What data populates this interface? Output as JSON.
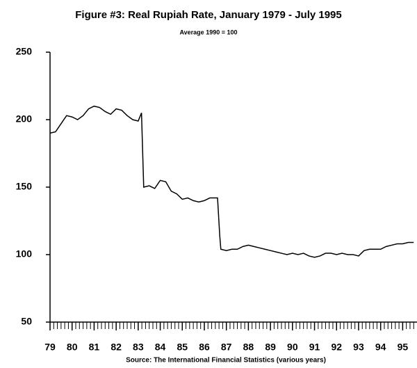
{
  "chart_data": {
    "type": "line",
    "title": "Figure #3: Real Rupiah Rate, January 1979 - July 1995",
    "subtitle": "Average 1990 = 100",
    "source": "Source: The International Financial Statistics (various years)",
    "x": [
      1979,
      1979.25,
      1979.5,
      1979.75,
      1980,
      1980.25,
      1980.5,
      1980.75,
      1981,
      1981.25,
      1981.5,
      1981.75,
      1982,
      1982.25,
      1982.5,
      1982.75,
      1983,
      1983.15,
      1983.25,
      1983.5,
      1983.75,
      1984,
      1984.25,
      1984.5,
      1984.75,
      1985,
      1985.25,
      1985.5,
      1985.75,
      1986,
      1986.25,
      1986.6,
      1986.7,
      1986.75,
      1987,
      1987.25,
      1987.5,
      1987.75,
      1988,
      1988.25,
      1988.5,
      1988.75,
      1989,
      1989.25,
      1989.5,
      1989.75,
      1990,
      1990.25,
      1990.5,
      1990.75,
      1991,
      1991.25,
      1991.5,
      1991.75,
      1992,
      1992.25,
      1992.5,
      1992.75,
      1993,
      1993.25,
      1993.5,
      1993.75,
      1994,
      1994.25,
      1994.5,
      1994.75,
      1995,
      1995.25,
      1995.5
    ],
    "series": [
      {
        "name": "Real Rupiah Rate",
        "color": "#000000",
        "values": [
          190,
          191,
          197,
          203,
          202,
          200,
          203,
          208,
          210,
          209,
          206,
          204,
          208,
          207,
          203,
          200,
          199,
          205,
          150,
          151,
          149,
          155,
          154,
          147,
          145,
          141,
          142,
          140,
          139,
          140,
          142,
          142,
          114,
          104,
          103,
          104,
          104,
          106,
          107,
          106,
          105,
          104,
          103,
          102,
          101,
          100,
          101,
          100,
          101,
          99,
          98,
          99,
          101,
          101,
          100,
          101,
          100,
          100,
          99,
          103,
          104,
          104,
          104,
          106,
          107,
          108,
          108,
          109,
          109
        ]
      }
    ],
    "xlim": [
      1979,
      1995.65
    ],
    "xticks": [
      {
        "value": 1979,
        "label": "79"
      },
      {
        "value": 1980,
        "label": "80"
      },
      {
        "value": 1981,
        "label": "81"
      },
      {
        "value": 1982,
        "label": "82"
      },
      {
        "value": 1983,
        "label": "83"
      },
      {
        "value": 1984,
        "label": "84"
      },
      {
        "value": 1985,
        "label": "85"
      },
      {
        "value": 1986,
        "label": "86"
      },
      {
        "value": 1987,
        "label": "87"
      },
      {
        "value": 1988,
        "label": "88"
      },
      {
        "value": 1989,
        "label": "89"
      },
      {
        "value": 1990,
        "label": "90"
      },
      {
        "value": 1991,
        "label": "91"
      },
      {
        "value": 1992,
        "label": "92"
      },
      {
        "value": 1993,
        "label": "93"
      },
      {
        "value": 1994,
        "label": "94"
      },
      {
        "value": 1995,
        "label": "95"
      }
    ],
    "ylim": [
      50,
      250
    ],
    "yticks": [
      50,
      100,
      150,
      200,
      250
    ],
    "grid": false
  }
}
